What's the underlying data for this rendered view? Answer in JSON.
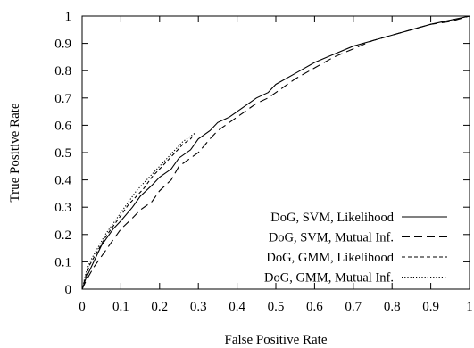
{
  "chart_data": {
    "type": "line",
    "xlabel": "False Positive Rate",
    "ylabel": "True Positive Rate",
    "xlim": [
      0,
      1
    ],
    "ylim": [
      0,
      1
    ],
    "xticks": [
      "0",
      "0.1",
      "0.2",
      "0.3",
      "0.4",
      "0.5",
      "0.6",
      "0.7",
      "0.8",
      "0.9",
      "1"
    ],
    "yticks": [
      "0",
      "0.1",
      "0.2",
      "0.3",
      "0.4",
      "0.5",
      "0.6",
      "0.7",
      "0.8",
      "0.9",
      "1"
    ],
    "grid": false,
    "legend": "bottom-right",
    "series": [
      {
        "name": "DoG, SVM, Likelihood",
        "style": "solid",
        "x": [
          0,
          0.01,
          0.03,
          0.05,
          0.08,
          0.1,
          0.13,
          0.15,
          0.18,
          0.2,
          0.23,
          0.25,
          0.28,
          0.3,
          0.33,
          0.35,
          0.38,
          0.4,
          0.43,
          0.45,
          0.48,
          0.5,
          0.55,
          0.6,
          0.65,
          0.7,
          0.75,
          0.8,
          0.85,
          0.9,
          0.95,
          1.0
        ],
        "y": [
          0,
          0.04,
          0.1,
          0.16,
          0.22,
          0.25,
          0.3,
          0.34,
          0.38,
          0.41,
          0.44,
          0.48,
          0.51,
          0.55,
          0.58,
          0.61,
          0.63,
          0.65,
          0.68,
          0.7,
          0.72,
          0.75,
          0.79,
          0.83,
          0.86,
          0.89,
          0.91,
          0.93,
          0.95,
          0.97,
          0.985,
          1.0
        ]
      },
      {
        "name": "DoG, SVM, Mutual Inf.",
        "style": "longdash",
        "x": [
          0,
          0.01,
          0.03,
          0.05,
          0.08,
          0.1,
          0.13,
          0.15,
          0.18,
          0.2,
          0.23,
          0.25,
          0.28,
          0.3,
          0.33,
          0.35,
          0.38,
          0.4,
          0.43,
          0.45,
          0.48,
          0.5,
          0.55,
          0.6,
          0.65,
          0.7,
          0.75,
          0.8,
          0.85,
          0.9,
          0.95,
          1.0
        ],
        "y": [
          0,
          0.03,
          0.08,
          0.12,
          0.18,
          0.22,
          0.26,
          0.29,
          0.32,
          0.36,
          0.4,
          0.45,
          0.48,
          0.5,
          0.55,
          0.58,
          0.61,
          0.63,
          0.66,
          0.68,
          0.7,
          0.72,
          0.77,
          0.81,
          0.85,
          0.88,
          0.91,
          0.93,
          0.95,
          0.97,
          0.98,
          1.0
        ]
      },
      {
        "name": "DoG, GMM, Likelihood",
        "style": "shortdash",
        "x": [
          0,
          0.01,
          0.02,
          0.04,
          0.06,
          0.08,
          0.1,
          0.12,
          0.14,
          0.16,
          0.18,
          0.2,
          0.22,
          0.24,
          0.26,
          0.28,
          0.29
        ],
        "y": [
          0,
          0.05,
          0.09,
          0.14,
          0.19,
          0.23,
          0.27,
          0.31,
          0.34,
          0.37,
          0.41,
          0.44,
          0.47,
          0.5,
          0.53,
          0.55,
          0.57
        ]
      },
      {
        "name": "DoG, GMM, Mutual Inf.",
        "style": "dotted",
        "x": [
          0,
          0.01,
          0.02,
          0.04,
          0.06,
          0.08,
          0.1,
          0.12,
          0.14,
          0.16,
          0.18,
          0.2,
          0.22,
          0.24,
          0.26,
          0.28,
          0.29
        ],
        "y": [
          0,
          0.06,
          0.1,
          0.15,
          0.2,
          0.24,
          0.28,
          0.32,
          0.36,
          0.39,
          0.42,
          0.45,
          0.48,
          0.51,
          0.54,
          0.56,
          0.57
        ]
      }
    ]
  }
}
